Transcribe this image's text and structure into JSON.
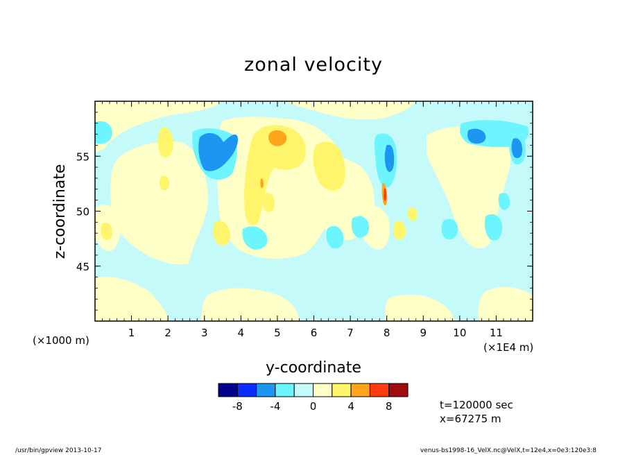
{
  "chart_data": {
    "type": "heatmap",
    "title": "zonal velocity",
    "xlabel": "y-coordinate",
    "ylabel": "z-coordinate",
    "x_unit_label": "(×1000 m)",
    "x_scale_label": "(×1E4 m)",
    "xlim": [
      0,
      12
    ],
    "ylim": [
      40,
      60
    ],
    "x_ticks": [
      1,
      2,
      3,
      4,
      5,
      6,
      7,
      8,
      9,
      10,
      11
    ],
    "y_ticks": [
      45,
      50,
      55
    ],
    "colorbar": {
      "levels": [
        -10,
        -8,
        -6,
        -4,
        -2,
        0,
        2,
        4,
        6,
        8,
        10
      ],
      "colors": [
        "#00008c",
        "#0b2cff",
        "#1c96f0",
        "#6cf5ff",
        "#c4fafa",
        "#ffffc8",
        "#fff56a",
        "#ffa51c",
        "#ff3c10",
        "#a00c0c"
      ],
      "tick_labels": [
        "-8",
        "-4",
        "0",
        "4",
        "8"
      ],
      "tick_values": [
        -8,
        -4,
        0,
        4,
        8
      ]
    },
    "features": [
      {
        "x": 3.4,
        "z": 56.0,
        "value": -6
      },
      {
        "x": 5.1,
        "z": 56.5,
        "value": 5
      },
      {
        "x": 8.0,
        "z": 51.0,
        "value": 6
      },
      {
        "x": 7.9,
        "z": 54.0,
        "value": -5
      },
      {
        "x": 10.4,
        "z": 56.8,
        "value": -6
      },
      {
        "x": 11.5,
        "z": 55.5,
        "value": -5
      }
    ]
  },
  "annotations": {
    "time": "t=120000 sec",
    "position": "x=67275 m"
  },
  "footer": {
    "left": "/usr/bin/gpview  2013-10-17",
    "right": "venus-bs1998-16_VelX.nc@VelX,t=12e4,x=0e3:120e3:8"
  }
}
